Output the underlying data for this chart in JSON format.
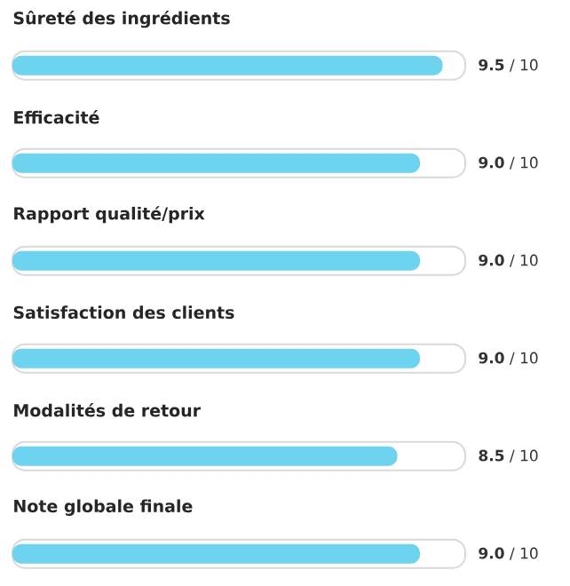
{
  "chart_data": {
    "type": "bar",
    "orientation": "horizontal",
    "categories": [
      "Sûreté des ingrédients",
      "Efficacité",
      "Rapport qualité/prix",
      "Satisfaction des clients",
      "Modalités de retour",
      "Note globale finale"
    ],
    "values": [
      9.5,
      9.0,
      9.0,
      9.0,
      8.5,
      9.0
    ],
    "value_labels": [
      "**9.5** / 10",
      "**9.0** / 10",
      "**9.0** / 10",
      "**9.0** / 10",
      "**8.5** / 10",
      "**9.0** / 10"
    ],
    "color": "#6dd3ee",
    "xlim": [
      0,
      10
    ]
  }
}
